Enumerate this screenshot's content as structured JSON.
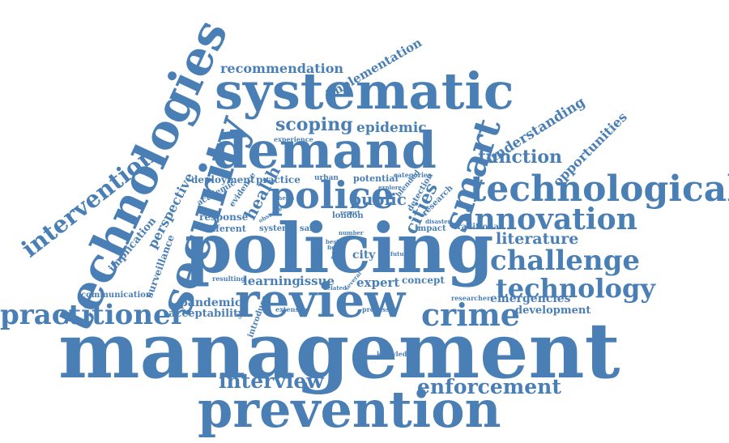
{
  "colors": {
    "word": "#4a7fb5",
    "background": "#ffffff"
  },
  "words": [
    {
      "id": "management",
      "text": "management"
    },
    {
      "id": "policing",
      "text": "policing"
    },
    {
      "id": "prevention",
      "text": "prevention"
    },
    {
      "id": "review",
      "text": "review"
    },
    {
      "id": "demand",
      "text": "demand"
    },
    {
      "id": "systematic",
      "text": "systematic"
    },
    {
      "id": "technologies",
      "text": "technologies"
    },
    {
      "id": "security",
      "text": "security"
    },
    {
      "id": "technological",
      "text": "technological"
    },
    {
      "id": "police",
      "text": "police"
    },
    {
      "id": "smart",
      "text": "smart"
    },
    {
      "id": "innovation",
      "text": "innovation"
    },
    {
      "id": "challenge",
      "text": "challenge"
    },
    {
      "id": "technology",
      "text": "technology"
    },
    {
      "id": "crime",
      "text": "crime"
    },
    {
      "id": "practitioner",
      "text": "practitioner"
    },
    {
      "id": "intervention",
      "text": "intervention"
    },
    {
      "id": "interview",
      "text": "interview"
    },
    {
      "id": "enforcement",
      "text": "enforcement"
    },
    {
      "id": "recommendation",
      "text": "recommendation"
    },
    {
      "id": "implementation",
      "text": "implementation"
    },
    {
      "id": "scoping",
      "text": "scoping"
    },
    {
      "id": "epidemic",
      "text": "epidemic"
    },
    {
      "id": "understanding",
      "text": "understanding"
    },
    {
      "id": "function",
      "text": "function"
    },
    {
      "id": "opportunities",
      "text": "opportunities"
    },
    {
      "id": "literature",
      "text": "literature"
    },
    {
      "id": "emergencies",
      "text": "emergencies"
    },
    {
      "id": "development",
      "text": "development"
    },
    {
      "id": "cities",
      "text": "cities"
    },
    {
      "id": "public",
      "text": "public"
    },
    {
      "id": "health",
      "text": "health"
    },
    {
      "id": "city",
      "text": "city"
    },
    {
      "id": "expert",
      "text": "expert"
    },
    {
      "id": "concept",
      "text": "concept"
    },
    {
      "id": "learning",
      "text": "learning"
    },
    {
      "id": "issue",
      "text": "issue"
    },
    {
      "id": "pandemic",
      "text": "pandemic"
    },
    {
      "id": "acceptability",
      "text": "acceptability"
    },
    {
      "id": "perspective",
      "text": "perspective"
    },
    {
      "id": "implication",
      "text": "implication"
    },
    {
      "id": "surveillance",
      "text": "surveillance"
    },
    {
      "id": "deployment",
      "text": "deployment"
    },
    {
      "id": "practice",
      "text": "practice"
    },
    {
      "id": "potential",
      "text": "potential"
    },
    {
      "id": "response",
      "text": "response"
    },
    {
      "id": "different",
      "text": "different"
    },
    {
      "id": "academic",
      "text": "academic"
    },
    {
      "id": "evidence",
      "text": "evidence"
    },
    {
      "id": "system",
      "text": "system"
    },
    {
      "id": "safe",
      "text": "safe"
    },
    {
      "id": "london",
      "text": "london"
    },
    {
      "id": "impact",
      "text": "impact"
    },
    {
      "id": "research",
      "text": "research"
    },
    {
      "id": "detection",
      "text": "detection"
    },
    {
      "id": "blended",
      "text": "blended"
    },
    {
      "id": "categories",
      "text": "categories"
    },
    {
      "id": "traditional",
      "text": "traditional"
    },
    {
      "id": "urban",
      "text": "urban"
    },
    {
      "id": "experience",
      "text": "experience"
    },
    {
      "id": "communication",
      "text": "communication"
    },
    {
      "id": "introduce",
      "text": "introduce"
    },
    {
      "id": "resulting",
      "text": "resulting"
    },
    {
      "id": "extensive",
      "text": "extensive"
    },
    {
      "id": "processes",
      "text": "processes"
    },
    {
      "id": "researcher",
      "text": "researcher"
    },
    {
      "id": "knowledge",
      "text": "knowledge"
    },
    {
      "id": "related",
      "text": "related"
    },
    {
      "id": "disaster",
      "text": "disaster"
    },
    {
      "id": "report",
      "text": "report"
    },
    {
      "id": "best",
      "text": "best"
    },
    {
      "id": "explore",
      "text": "explore"
    },
    {
      "id": "number",
      "text": "number"
    },
    {
      "id": "obstacle",
      "text": "obstacle"
    },
    {
      "id": "thesis",
      "text": "thesis"
    },
    {
      "id": "field",
      "text": "field"
    },
    {
      "id": "many",
      "text": "many"
    },
    {
      "id": "future",
      "text": "future"
    },
    {
      "id": "several",
      "text": "several"
    }
  ]
}
